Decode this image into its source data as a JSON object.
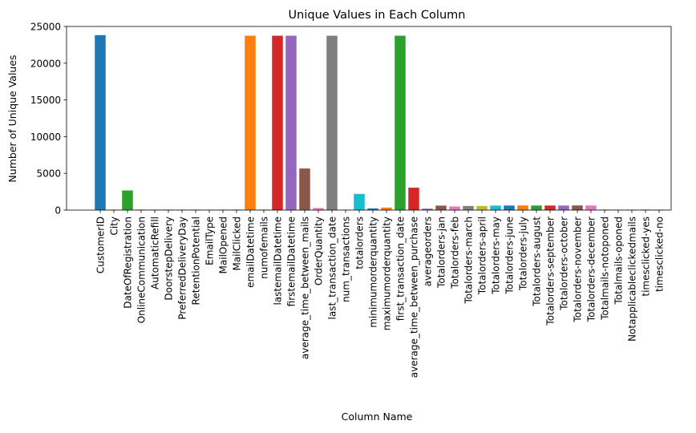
{
  "chart_data": {
    "type": "bar",
    "title": "Unique Values in Each Column",
    "xlabel": "Column Name",
    "ylabel": "Number of Unique Values",
    "ylim": [
      0,
      25000
    ],
    "yticks": [
      0,
      5000,
      10000,
      15000,
      20000,
      25000
    ],
    "ytick_labels": [
      "0",
      "5000",
      "10000",
      "15000",
      "20000",
      "25000"
    ],
    "grid": false,
    "legend": "none",
    "categories": [
      "CustomerID",
      "City",
      "DateOfRegistration",
      "OnlineCommunication",
      "AutomaticRefill",
      "DoorstepDelivery",
      "PreferredDeliveryDay",
      "RetentionPotential",
      "EmailType",
      "MailOpened",
      "MailClicked",
      "emailDatetime",
      "numofemails",
      "lastemailDatetime",
      "firstemailDatetime",
      "average_time_between_mails",
      "OrderQuantity",
      "last_transaction_date",
      "num_transactions",
      "totalorders",
      "minimumorderquantity",
      "maximumorderquantity",
      "first_transaction_date",
      "average_time_between_purchase",
      "averageorders",
      "Totalorders-jan",
      "Totalorders-feb",
      "Totalorders-march",
      "Totalorders-april",
      "Totalorders-may",
      "Totalorders-june",
      "Totalorders-july",
      "Totalorders-august",
      "Totalorders-september",
      "Totalorders-october",
      "Totalorders-november",
      "Totalorders-december",
      "Totalmails-notoponed",
      "Totalmails-oponed",
      "Notapplicableclickedmails",
      "timesclicked-yes",
      "timesclicked-no"
    ],
    "values": [
      23820,
      4,
      2670,
      2,
      2,
      2,
      7,
      3,
      2,
      2,
      2,
      23740,
      2,
      23740,
      23740,
      5660,
      280,
      23740,
      60,
      2200,
      230,
      340,
      23740,
      3050,
      200,
      610,
      490,
      560,
      560,
      610,
      620,
      630,
      620,
      620,
      620,
      630,
      630,
      10,
      10,
      2,
      10,
      10
    ],
    "colors": [
      "#1f77b4",
      "#ff7f0e",
      "#2ca02c",
      "#d62728",
      "#9467bd",
      "#8c564b",
      "#e377c2",
      "#7f7f7f",
      "#bcbd22",
      "#17becf"
    ]
  }
}
